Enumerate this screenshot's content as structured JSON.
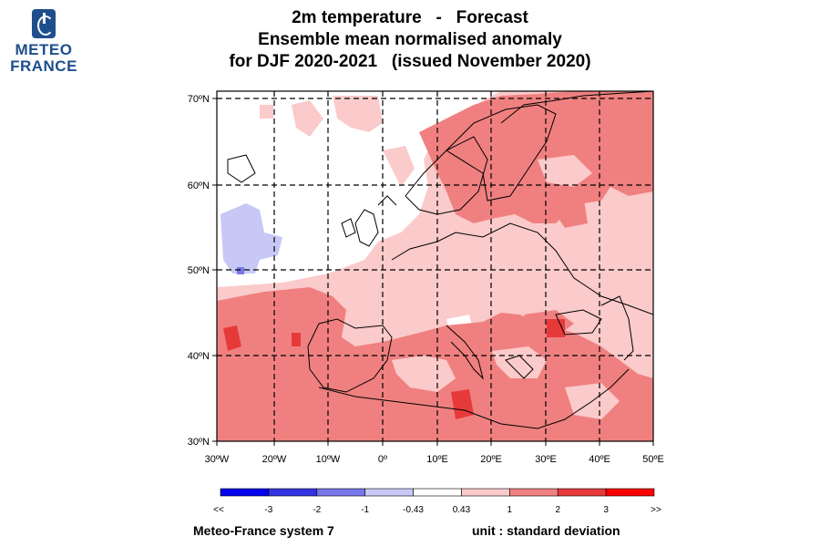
{
  "logo": {
    "line1": "METEO",
    "line2": "FRANCE"
  },
  "title": {
    "line1": "2m temperature   -   Forecast",
    "line2": "Ensemble mean normalised anomaly",
    "line3": "for DJF 2020-2021   (issued November 2020)"
  },
  "map": {
    "lat_labels": [
      "70ºN",
      "60ºN",
      "50ºN",
      "40ºN",
      "30ºN"
    ],
    "lon_labels": [
      "30ºW",
      "20ºW",
      "10ºW",
      "0º",
      "10ºE",
      "20ºE",
      "30ºE",
      "40ºE",
      "50ºE"
    ]
  },
  "colorbar": {
    "labels": [
      "<<",
      "-3",
      "-2",
      "-1",
      "-0.43",
      "0.43",
      "1",
      "2",
      "3",
      ">>"
    ],
    "colors": [
      "#0000ee",
      "#3333e0",
      "#7777ea",
      "#c8c8f6",
      "#ffffff",
      "#fbcaca",
      "#f08080",
      "#e63a3a",
      "#ff0000"
    ]
  },
  "footer": {
    "system": "Meteo-France system 7",
    "unit": "unit : standard deviation"
  }
}
